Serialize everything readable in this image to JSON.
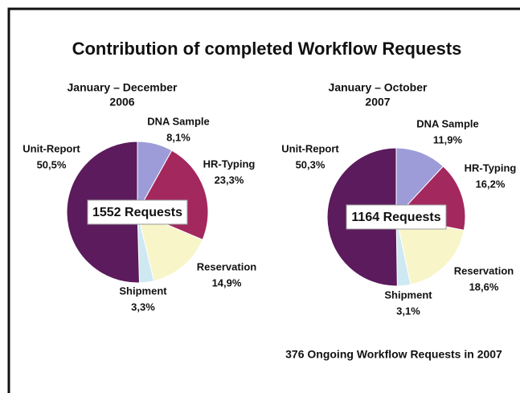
{
  "title": "Contribution of completed Workflow Requests",
  "note": "376 Ongoing Workflow Requests in 2007",
  "chart_data": [
    {
      "type": "pie",
      "subtitle": [
        "January – December",
        "2006"
      ],
      "center_label": "1552 Requests",
      "categories": [
        "DNA Sample",
        "HR-Typing",
        "Reservation",
        "Shipment",
        "Unit-Report"
      ],
      "values": [
        8.1,
        23.3,
        14.9,
        3.3,
        50.5
      ],
      "value_labels": [
        "8,1%",
        "23,3%",
        "14,9%",
        "3,3%",
        "50,5%"
      ],
      "colors": [
        "#9d9cd9",
        "#a3285e",
        "#f8f5c9",
        "#cfe9f3",
        "#5b1b5c"
      ]
    },
    {
      "type": "pie",
      "subtitle": [
        "January – October",
        "2007"
      ],
      "center_label": "1164 Requests",
      "categories": [
        "DNA Sample",
        "HR-Typing",
        "Reservation",
        "Shipment",
        "Unit-Report"
      ],
      "values": [
        11.9,
        16.2,
        18.6,
        3.1,
        50.3
      ],
      "value_labels": [
        "11,9%",
        "16,2%",
        "18,6%",
        "3,1%",
        "50,3%"
      ],
      "colors": [
        "#9d9cd9",
        "#a3285e",
        "#f8f5c9",
        "#cfe9f3",
        "#5b1b5c"
      ]
    }
  ]
}
